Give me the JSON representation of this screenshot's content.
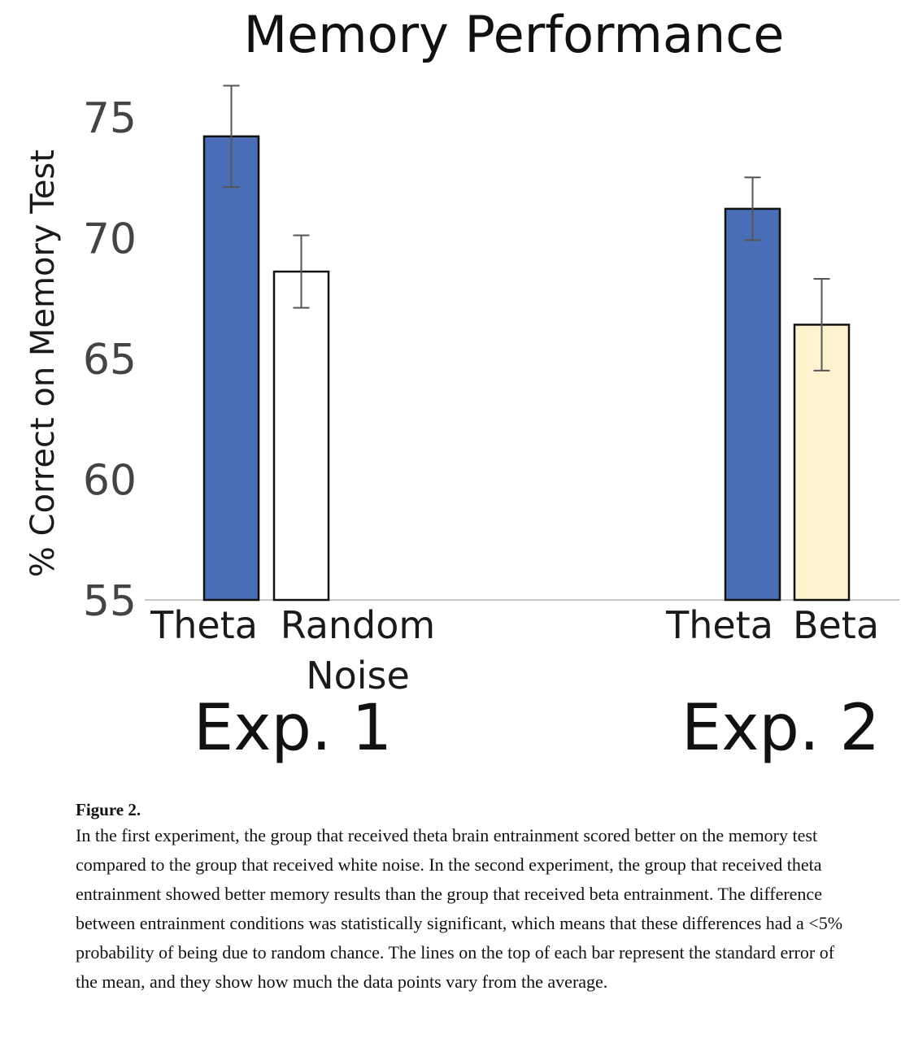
{
  "chart_data": {
    "type": "bar",
    "title": "Memory Performance",
    "ylabel": "% Correct on Memory Test",
    "ylim": [
      55,
      76
    ],
    "yticks": [
      55,
      60,
      65,
      70,
      75
    ],
    "grid": false,
    "groups": [
      {
        "label": "Exp. 1",
        "bars": [
          {
            "label": [
              "Theta"
            ],
            "value": 74.2,
            "error": 2.1,
            "color": "#4a6db8"
          },
          {
            "label": [
              "Random",
              "Noise"
            ],
            "value": 68.6,
            "error": 1.5,
            "color": "#ffffff"
          }
        ]
      },
      {
        "label": "Exp. 2",
        "bars": [
          {
            "label": [
              "Theta"
            ],
            "value": 71.2,
            "error": 1.3,
            "color": "#4a6db8"
          },
          {
            "label": [
              "Beta"
            ],
            "value": 66.4,
            "error": 1.9,
            "color": "#fff3cf"
          }
        ]
      }
    ]
  },
  "caption": {
    "title": "Figure 2.",
    "body": "In the first experiment, the group that received theta brain entrainment scored better on the memory test compared to the group that received white noise. In the second experiment, the group that received theta entrainment showed better memory results than the group that received beta entrainment. The difference between entrainment conditions was statistically significant, which means that these differences had a <5% probability of being due to random chance. The lines on the top of each bar represent the standard error of the mean, and they show how much the data points vary from the average."
  }
}
